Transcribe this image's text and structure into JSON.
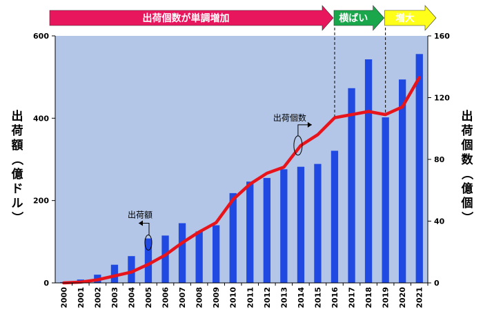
{
  "chart_data": {
    "type": "bar",
    "categories": [
      "2000",
      "2001",
      "2002",
      "2003",
      "2004",
      "2005",
      "2006",
      "2007",
      "2008",
      "2009",
      "2010",
      "2011",
      "2012",
      "2013",
      "2014",
      "2015",
      "2016",
      "2017",
      "2018",
      "2019",
      "2020",
      "2021"
    ],
    "series": [
      {
        "name": "出荷額",
        "type": "bar",
        "axis": "left",
        "color": "#1f49e0",
        "values": [
          2,
          8,
          20,
          44,
          65,
          108,
          115,
          145,
          125,
          140,
          218,
          246,
          255,
          276,
          282,
          289,
          321,
          473,
          543,
          402,
          494,
          556
        ]
      },
      {
        "name": "出荷個数",
        "type": "line",
        "axis": "right",
        "color": "#e8141b",
        "values": [
          0,
          0.5,
          2,
          4.5,
          7,
          12,
          18,
          26,
          33,
          39,
          54,
          64,
          71,
          75,
          89,
          96,
          107,
          109,
          111,
          109,
          114,
          133
        ]
      }
    ],
    "y_left": {
      "label": "出荷額（億ドル）",
      "range": [
        0,
        600
      ],
      "ticks": [
        "0",
        "200",
        "400",
        "600"
      ]
    },
    "y_right": {
      "label": "出荷個数（億個）",
      "range": [
        0,
        160
      ],
      "ticks": [
        "0",
        "40",
        "80",
        "120",
        "160"
      ]
    },
    "phases": [
      {
        "label": "出荷個数が単調増加",
        "color": "#e8175d",
        "text_color": "#ffffff",
        "start": "2000",
        "end": "2016"
      },
      {
        "label": "横ばい",
        "color": "#1aa64b",
        "text_color": "#ffffff",
        "start": "2016",
        "end": "2019"
      },
      {
        "label": "増大",
        "color": "#ffff1a",
        "text_color": "#000000",
        "start": "2019",
        "end": "2021"
      }
    ],
    "annotations": [
      {
        "text": "出荷額",
        "category": "2005"
      },
      {
        "text": "出荷個数",
        "category": "2014"
      }
    ],
    "plot_background": "#b3c6e7",
    "grid": false
  }
}
